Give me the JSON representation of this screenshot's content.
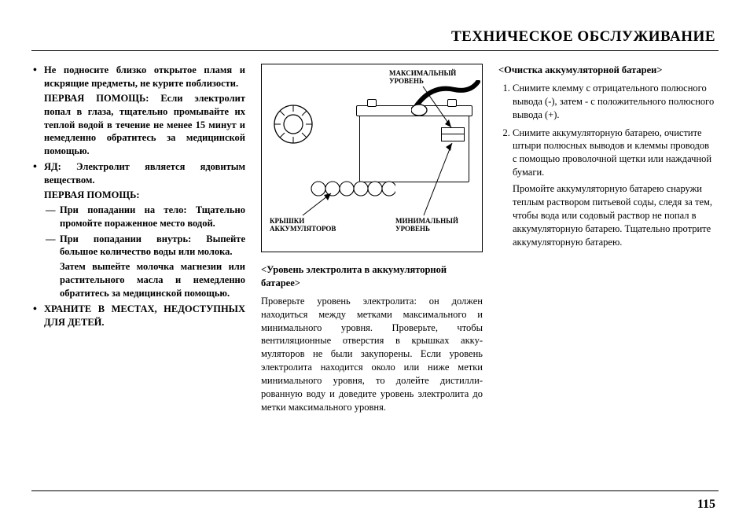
{
  "page": {
    "title": "ТЕХНИЧЕСКОЕ ОБСЛУЖИВАНИЕ",
    "number": "115"
  },
  "col1": {
    "b1": "Не подносите близко открытое пламя и искрящие предметы, не курите поблизости.",
    "b1a_label": "ПЕРВАЯ ПОМОЩЬ:",
    "b1a_text": " Если элект­ролит попал в глаза, тщательно промывайте их теплой водой в те­чение не менее 15 минут и немед­ленно обратитесь за медицинской помощью.",
    "b2_label": "ЯД:",
    "b2_text": " Электролит является ядови­тым веществом.",
    "b2_aid": "ПЕРВАЯ ПОМОЩЬ:",
    "d1": "При попадании на тело: Тща­тельно промойте пораженное место водой.",
    "d2": "При попадании внутрь: Выпейте большое количество воды или молока.",
    "d2a": "Затем выпейте молочка магне­зии или растительного масла и немедленно обратитесь за ме­дицинской помощью.",
    "b3": "ХРАНИТЕ В МЕСТАХ, НЕДОСТУП­НЫХ ДЛЯ ДЕТЕЙ."
  },
  "figure": {
    "label_max": "МАКСИМАЛЬНЫЙ\nУРОВЕНЬ",
    "label_min": "МИНИМАЛЬНЫЙ\nУРОВЕНЬ",
    "label_caps": "КРЫШКИ\nАККУМУЛЯТОРОВ"
  },
  "col2": {
    "h1": "<Уровень электролита в аккумуляторной батарее>",
    "p1": "Проверьте уровень электролита: он должен находиться между метками максимального и минимального уровня. Проверьте, чтобы вентиляционные отверстия в крышках акку­муляторов не были закупорены. Если уровень электролита находится около или ниже метки минимального уровня, то долейте дистилли­рованную воду и доведите уровень электро­лита до метки максимального уровня."
  },
  "col3": {
    "h1": "<Очистка аккумуляторной батареи>",
    "s1": "Снимите клемму с отрицательного полюсного вывода (-), затем - с положительного полюсного вывода (+).",
    "s2": "Снимите аккумуляторную батарею, очистите штыри полюсных выводов и клеммы проводов с помощью проволочной щетки или наждачной бумаги.",
    "s2a": "Промойте аккумуляторную батарею снаружи теплым раствором питьевой соды, следя за тем, чтобы вода или содовый раствор не попал в аккумуляторную батарею. Тщательно протрите аккумуляторную батарею."
  },
  "colors": {
    "text": "#000000",
    "bg": "#ffffff",
    "rule": "#000000"
  }
}
